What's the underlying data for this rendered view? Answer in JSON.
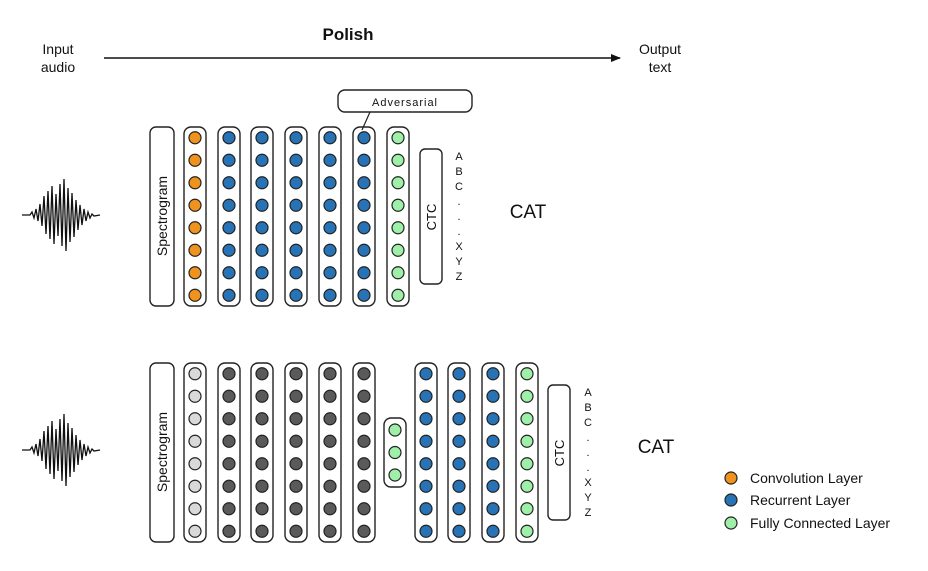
{
  "header": {
    "input_label": [
      "Input",
      "audio"
    ],
    "title": "Polish",
    "output_label": [
      "Output",
      "text"
    ]
  },
  "colors": {
    "conv": "#F0921E",
    "recurrent": "#2873B6",
    "fc": "#9EF0A8",
    "frozen_conv": "#D9D9D9",
    "frozen_recurrent": "#5A5A5A"
  },
  "top_model": {
    "spectrogram_label": "Spectrogram",
    "adversarial_label": "Adversarial",
    "ctc_label": "CTC",
    "alphabet": [
      "A",
      "B",
      "C",
      ".",
      ".",
      ".",
      "X",
      "Y",
      "Z"
    ],
    "output_word": "CAT",
    "columns": [
      {
        "type": "conv",
        "nodes": 8
      },
      {
        "type": "recurrent",
        "nodes": 8
      },
      {
        "type": "recurrent",
        "nodes": 8
      },
      {
        "type": "recurrent",
        "nodes": 8
      },
      {
        "type": "recurrent",
        "nodes": 8
      },
      {
        "type": "recurrent",
        "nodes": 8
      },
      {
        "type": "fc",
        "nodes": 8
      }
    ]
  },
  "bottom_model": {
    "spectrogram_label": "Spectrogram",
    "ctc_label": "CTC",
    "alphabet": [
      "A",
      "B",
      "C",
      ".",
      ".",
      ".",
      "X",
      "Y",
      "Z"
    ],
    "output_word": "CAT",
    "columns": [
      {
        "type": "frozen_conv",
        "nodes": 8
      },
      {
        "type": "frozen_recurrent",
        "nodes": 8
      },
      {
        "type": "frozen_recurrent",
        "nodes": 8
      },
      {
        "type": "frozen_recurrent",
        "nodes": 8
      },
      {
        "type": "frozen_recurrent",
        "nodes": 8
      },
      {
        "type": "frozen_recurrent",
        "nodes": 8
      },
      {
        "type": "fc",
        "nodes": 3
      },
      {
        "type": "recurrent",
        "nodes": 8
      },
      {
        "type": "recurrent",
        "nodes": 8
      },
      {
        "type": "recurrent",
        "nodes": 8
      },
      {
        "type": "fc",
        "nodes": 8
      }
    ]
  },
  "legend": [
    {
      "type": "conv",
      "label": "Convolution Layer"
    },
    {
      "type": "recurrent",
      "label": "Recurrent Layer"
    },
    {
      "type": "fc",
      "label": "Fully Connected Layer"
    }
  ]
}
